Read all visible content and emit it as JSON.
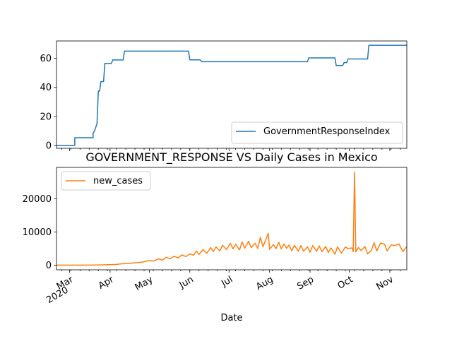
{
  "chart_data": [
    {
      "type": "line",
      "title": "",
      "xlabel": "",
      "ylabel": "",
      "ylim": [
        -2,
        72
      ],
      "yticks": [
        0,
        20,
        40,
        60
      ],
      "legend": {
        "placement": "lower-right",
        "entries": [
          "GovernmentResponseIndex"
        ]
      },
      "grid": false,
      "series": [
        {
          "name": "GovernmentResponseIndex",
          "color": "#1f77b4",
          "points": [
            [
              "2020-02-20",
              0
            ],
            [
              "2020-03-05",
              0
            ],
            [
              "2020-03-05",
              5.3
            ],
            [
              "2020-03-19",
              5.3
            ],
            [
              "2020-03-19",
              8.5
            ],
            [
              "2020-03-20",
              9.8
            ],
            [
              "2020-03-22",
              15
            ],
            [
              "2020-03-23",
              37.5
            ],
            [
              "2020-03-24",
              37.5
            ],
            [
              "2020-03-25",
              44
            ],
            [
              "2020-03-27",
              44
            ],
            [
              "2020-03-28",
              56.5
            ],
            [
              "2020-04-02",
              56.5
            ],
            [
              "2020-04-03",
              58.9
            ],
            [
              "2020-04-11",
              58.9
            ],
            [
              "2020-04-12",
              65
            ],
            [
              "2020-05-31",
              65
            ],
            [
              "2020-06-01",
              59
            ],
            [
              "2020-06-09",
              59
            ],
            [
              "2020-06-10",
              57.7
            ],
            [
              "2020-08-30",
              57.7
            ],
            [
              "2020-08-31",
              60.3
            ],
            [
              "2020-09-20",
              60.3
            ],
            [
              "2020-09-21",
              55.1
            ],
            [
              "2020-09-26",
              55.1
            ],
            [
              "2020-09-27",
              57.1
            ],
            [
              "2020-09-29",
              57.1
            ],
            [
              "2020-09-30",
              59.6
            ],
            [
              "2020-10-15",
              59.6
            ],
            [
              "2020-10-16",
              69
            ],
            [
              "2020-11-14",
              69
            ]
          ]
        }
      ]
    },
    {
      "type": "line",
      "title": "GOVERNMENT_RESPONSE VS Daily Cases in Mexico",
      "xlabel": "Date",
      "ylabel": "",
      "ylim": [
        -1400,
        29500
      ],
      "yticks": [
        0,
        10000,
        20000
      ],
      "xlim": [
        "2020-02-20",
        "2020-11-14"
      ],
      "xticks": [
        {
          "date": "2020-03-01",
          "label": "Mar",
          "sublabel": "2020"
        },
        {
          "date": "2020-04-01",
          "label": "Apr"
        },
        {
          "date": "2020-05-01",
          "label": "May"
        },
        {
          "date": "2020-06-01",
          "label": "Jun"
        },
        {
          "date": "2020-07-01",
          "label": "Jul"
        },
        {
          "date": "2020-08-01",
          "label": "Aug"
        },
        {
          "date": "2020-09-01",
          "label": "Sep"
        },
        {
          "date": "2020-10-01",
          "label": "Oct"
        },
        {
          "date": "2020-11-01",
          "label": "Nov"
        }
      ],
      "legend": {
        "placement": "upper-left",
        "entries": [
          "new_cases"
        ]
      },
      "grid": false,
      "series": [
        {
          "name": "new_cases",
          "color": "#ff7f0e",
          "points": [
            [
              "2020-02-20",
              0
            ],
            [
              "2020-02-28",
              1
            ],
            [
              "2020-03-05",
              2
            ],
            [
              "2020-03-10",
              3
            ],
            [
              "2020-03-15",
              12
            ],
            [
              "2020-03-20",
              45
            ],
            [
              "2020-03-25",
              70
            ],
            [
              "2020-03-31",
              150
            ],
            [
              "2020-04-05",
              200
            ],
            [
              "2020-04-10",
              400
            ],
            [
              "2020-04-15",
              500
            ],
            [
              "2020-04-20",
              700
            ],
            [
              "2020-04-25",
              900
            ],
            [
              "2020-04-28",
              1100
            ],
            [
              "2020-05-01",
              1400
            ],
            [
              "2020-05-04",
              1200
            ],
            [
              "2020-05-08",
              1900
            ],
            [
              "2020-05-11",
              1500
            ],
            [
              "2020-05-14",
              2400
            ],
            [
              "2020-05-17",
              1900
            ],
            [
              "2020-05-20",
              2700
            ],
            [
              "2020-05-23",
              2200
            ],
            [
              "2020-05-26",
              3100
            ],
            [
              "2020-05-29",
              2600
            ],
            [
              "2020-06-01",
              3400
            ],
            [
              "2020-06-04",
              3000
            ],
            [
              "2020-06-06",
              4300
            ],
            [
              "2020-06-08",
              3200
            ],
            [
              "2020-06-11",
              4700
            ],
            [
              "2020-06-14",
              3600
            ],
            [
              "2020-06-17",
              5300
            ],
            [
              "2020-06-19",
              4100
            ],
            [
              "2020-06-21",
              5500
            ],
            [
              "2020-06-24",
              4300
            ],
            [
              "2020-06-26",
              6000
            ],
            [
              "2020-06-29",
              4700
            ],
            [
              "2020-07-02",
              6600
            ],
            [
              "2020-07-04",
              4900
            ],
            [
              "2020-07-06",
              6300
            ],
            [
              "2020-07-09",
              4600
            ],
            [
              "2020-07-11",
              7000
            ],
            [
              "2020-07-13",
              5100
            ],
            [
              "2020-07-16",
              7200
            ],
            [
              "2020-07-18",
              5300
            ],
            [
              "2020-07-21",
              6600
            ],
            [
              "2020-07-23",
              5000
            ],
            [
              "2020-07-25",
              8400
            ],
            [
              "2020-07-27",
              5600
            ],
            [
              "2020-07-29",
              7500
            ],
            [
              "2020-07-31",
              9600
            ],
            [
              "2020-08-01",
              4800
            ],
            [
              "2020-08-04",
              6200
            ],
            [
              "2020-08-06",
              5000
            ],
            [
              "2020-08-08",
              6900
            ],
            [
              "2020-08-10",
              4900
            ],
            [
              "2020-08-12",
              6400
            ],
            [
              "2020-08-14",
              5100
            ],
            [
              "2020-08-16",
              6100
            ],
            [
              "2020-08-18",
              4300
            ],
            [
              "2020-08-20",
              6000
            ],
            [
              "2020-08-23",
              4200
            ],
            [
              "2020-08-25",
              5900
            ],
            [
              "2020-08-27",
              4200
            ],
            [
              "2020-08-30",
              5500
            ],
            [
              "2020-09-01",
              3900
            ],
            [
              "2020-09-03",
              5900
            ],
            [
              "2020-09-06",
              4200
            ],
            [
              "2020-09-08",
              5800
            ],
            [
              "2020-09-10",
              4100
            ],
            [
              "2020-09-13",
              5600
            ],
            [
              "2020-09-15",
              3800
            ],
            [
              "2020-09-17",
              5200
            ],
            [
              "2020-09-20",
              3300
            ],
            [
              "2020-09-22",
              5500
            ],
            [
              "2020-09-25",
              3600
            ],
            [
              "2020-09-28",
              5500
            ],
            [
              "2020-09-30",
              5000
            ],
            [
              "2020-10-03",
              5200
            ],
            [
              "2020-10-04",
              4100
            ],
            [
              "2020-10-05",
              28100
            ],
            [
              "2020-10-06",
              4000
            ],
            [
              "2020-10-08",
              5300
            ],
            [
              "2020-10-10",
              4400
            ],
            [
              "2020-10-13",
              5600
            ],
            [
              "2020-10-15",
              3400
            ],
            [
              "2020-10-18",
              4500
            ],
            [
              "2020-10-20",
              6800
            ],
            [
              "2020-10-22",
              4300
            ],
            [
              "2020-10-25",
              6700
            ],
            [
              "2020-10-28",
              6300
            ],
            [
              "2020-10-30",
              4300
            ],
            [
              "2020-11-02",
              6100
            ],
            [
              "2020-11-05",
              5900
            ],
            [
              "2020-11-08",
              6400
            ],
            [
              "2020-11-11",
              4100
            ],
            [
              "2020-11-14",
              5600
            ]
          ]
        }
      ]
    }
  ]
}
